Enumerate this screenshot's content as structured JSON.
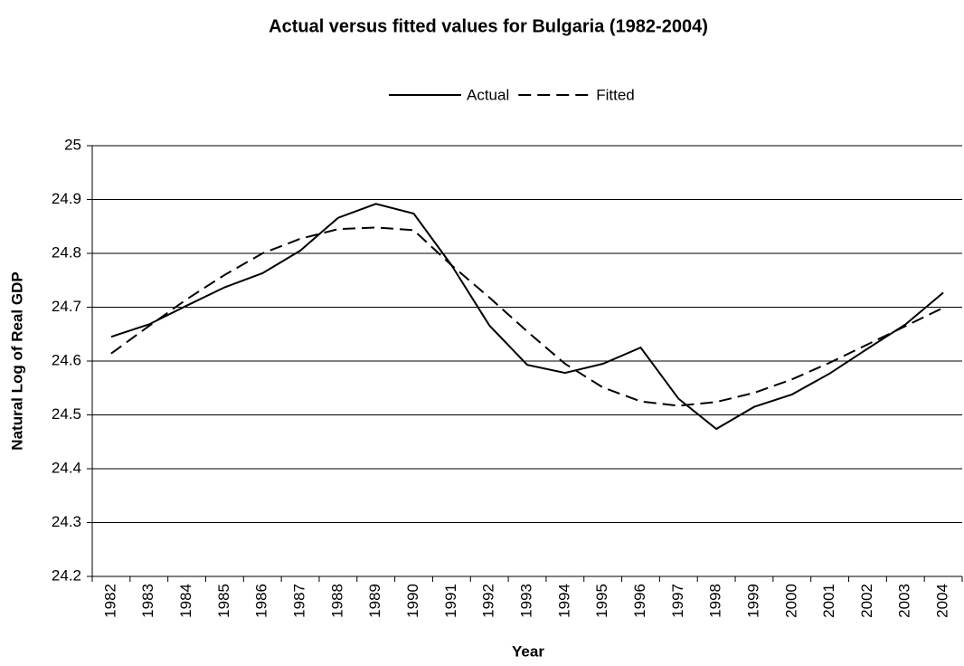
{
  "chart_data": {
    "type": "line",
    "title": "Actual versus fitted values for Bulgaria (1982-2004)",
    "x_label": "Year",
    "y_label": "Natural Log of Real GDP",
    "categories": [
      "1982",
      "1983",
      "1984",
      "1985",
      "1986",
      "1987",
      "1988",
      "1989",
      "1990",
      "1991",
      "1992",
      "1993",
      "1994",
      "1995",
      "1996",
      "1997",
      "1998",
      "1999",
      "2000",
      "2001",
      "2002",
      "2003",
      "2004"
    ],
    "series": [
      {
        "name": "Actual",
        "color": "#000000",
        "line_style": "solid",
        "values": [
          24.645,
          24.668,
          24.703,
          24.737,
          24.763,
          24.805,
          24.866,
          24.892,
          24.874,
          24.778,
          24.666,
          24.593,
          24.578,
          24.595,
          24.625,
          24.53,
          24.474,
          24.515,
          24.538,
          24.577,
          24.623,
          24.668,
          24.727
        ]
      },
      {
        "name": "Fitted",
        "color": "#000000",
        "line_style": "dashed",
        "values": [
          24.614,
          24.665,
          24.715,
          24.76,
          24.8,
          24.827,
          24.845,
          24.848,
          24.843,
          24.778,
          24.718,
          24.655,
          24.595,
          24.551,
          24.525,
          24.517,
          24.524,
          24.541,
          24.566,
          24.597,
          24.631,
          24.665,
          24.699
        ]
      }
    ],
    "ylim": [
      24.2,
      25
    ],
    "yticks": [
      24.2,
      24.3,
      24.4,
      24.5,
      24.6,
      24.7,
      24.8,
      24.9,
      25
    ],
    "grid": true,
    "legend": "top"
  }
}
